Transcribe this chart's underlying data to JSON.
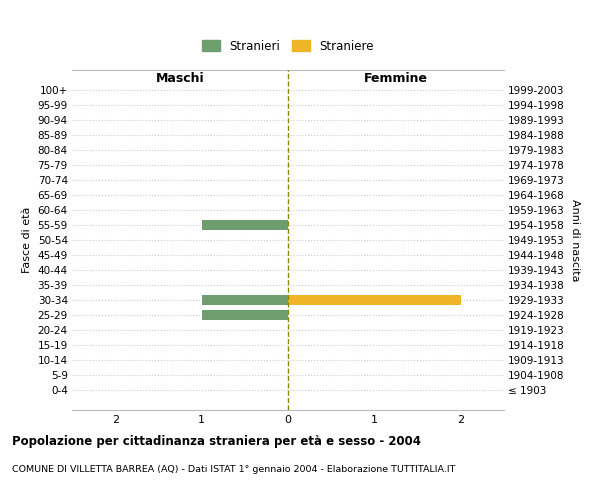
{
  "age_groups": [
    "100+",
    "95-99",
    "90-94",
    "85-89",
    "80-84",
    "75-79",
    "70-74",
    "65-69",
    "60-64",
    "55-59",
    "50-54",
    "45-49",
    "40-44",
    "35-39",
    "30-34",
    "25-29",
    "20-24",
    "15-19",
    "10-14",
    "5-9",
    "0-4"
  ],
  "birth_years": [
    "≤ 1903",
    "1904-1908",
    "1909-1913",
    "1914-1918",
    "1919-1923",
    "1924-1928",
    "1929-1933",
    "1934-1938",
    "1939-1943",
    "1944-1948",
    "1949-1953",
    "1954-1958",
    "1959-1963",
    "1964-1968",
    "1969-1973",
    "1974-1978",
    "1979-1983",
    "1984-1988",
    "1989-1993",
    "1994-1998",
    "1999-2003"
  ],
  "males": [
    0,
    0,
    0,
    0,
    0,
    0,
    0,
    0,
    0,
    1,
    0,
    0,
    0,
    0,
    1,
    1,
    0,
    0,
    0,
    0,
    0
  ],
  "females": [
    0,
    0,
    0,
    0,
    0,
    0,
    0,
    0,
    0,
    0,
    0,
    0,
    0,
    0,
    2,
    0,
    0,
    0,
    0,
    0,
    0
  ],
  "male_color": "#6e9e6e",
  "female_color": "#f0b429",
  "title_main": "Popolazione per cittadinanza straniera per età e sesso - 2004",
  "title_sub": "COMUNE DI VILLETTA BARREA (AQ) - Dati ISTAT 1° gennaio 2004 - Elaborazione TUTTITALIA.IT",
  "legend_male": "Stranieri",
  "legend_female": "Straniere",
  "xlabel_left": "Maschi",
  "xlabel_right": "Femmine",
  "ylabel_left": "Fasce di età",
  "ylabel_right": "Anni di nascita",
  "xlim": 2.5,
  "background_color": "#ffffff",
  "grid_color": "#cccccc",
  "zero_line_color": "#8b8b00",
  "bar_height": 0.65
}
